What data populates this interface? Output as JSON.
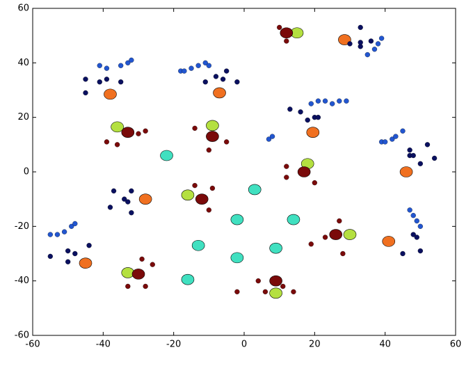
{
  "chart_data": {
    "type": "scatter",
    "xlim": [
      -60,
      60
    ],
    "ylim": [
      -60,
      60
    ],
    "xticks": [
      -60,
      -40,
      -20,
      0,
      20,
      40,
      60
    ],
    "yticks": [
      -60,
      -40,
      -20,
      0,
      20,
      40,
      60
    ],
    "grid": false,
    "series": [
      {
        "color": "#40e0c0",
        "marker": "large",
        "x": [
          -22,
          3,
          -2,
          14,
          -13,
          9,
          -2,
          -16
        ],
        "y": [
          6,
          -6.5,
          -17.5,
          -17.5,
          -27,
          -28,
          -31.5,
          -39.5
        ]
      },
      {
        "color": "#b4e040",
        "marker": "large",
        "x": [
          15,
          -36,
          -9,
          18,
          -16,
          30,
          -33,
          9
        ],
        "y": [
          51,
          16.5,
          17,
          3,
          -8.5,
          -23,
          -37,
          -44.5
        ]
      },
      {
        "color": "#f07020",
        "marker": "large",
        "x": [
          28.5,
          -38,
          -7,
          19.5,
          46,
          -28,
          41,
          -45
        ],
        "y": [
          48.5,
          28.5,
          29,
          14.5,
          0,
          -10,
          -25.5,
          -33.5
        ]
      },
      {
        "color": "#7a0a0a",
        "marker": "large",
        "x": [
          12,
          -33,
          -9,
          17,
          -12,
          -30,
          26,
          9
        ],
        "y": [
          51,
          14.5,
          13,
          0,
          -10,
          -37.5,
          -23,
          -40
        ]
      },
      {
        "color": "#7a0a0a",
        "marker": "small",
        "x": [
          10,
          12,
          -30,
          -28,
          -39,
          -36,
          -14,
          -10,
          -5,
          12,
          12,
          20,
          -14,
          -10,
          -9,
          -29,
          -33,
          -28,
          -26,
          -2,
          4,
          6,
          11,
          14,
          19,
          27,
          23,
          28
        ],
        "y": [
          53,
          48,
          14,
          15,
          11,
          10,
          16,
          8,
          11,
          2,
          -2,
          -4,
          -5,
          -14,
          -6,
          -32,
          -42,
          -42,
          -34,
          -44,
          -40,
          -44,
          -42,
          -44,
          -26.5,
          -18,
          -24,
          -30
        ]
      },
      {
        "color": "#0a1060",
        "marker": "small",
        "x": [
          33,
          30,
          33,
          36,
          33,
          -45,
          -41,
          -39,
          -45,
          -35,
          -11,
          -8,
          -6,
          -2,
          -5,
          13,
          16,
          20,
          21,
          18,
          47,
          47,
          48,
          50,
          52,
          54,
          -37,
          -38,
          -32,
          -33,
          -32,
          -34,
          -48,
          -50,
          -50,
          -44,
          -55,
          45,
          48,
          49,
          50
        ],
        "y": [
          53,
          47,
          46,
          48,
          47.5,
          34,
          33,
          34,
          29,
          33,
          33,
          35,
          34,
          33,
          37,
          23,
          22,
          20,
          20,
          19,
          8,
          6,
          6,
          3,
          10,
          5,
          -7,
          -13,
          -7,
          -11,
          -15,
          -10,
          -30,
          -29,
          -33,
          -27,
          -31,
          -30,
          -23,
          -24,
          -29
        ]
      },
      {
        "color": "#2256d0",
        "marker": "small",
        "x": [
          -41,
          -39,
          -35,
          -33,
          -32,
          -18,
          -17,
          -15,
          -13,
          -11,
          -10,
          19,
          21,
          23,
          25,
          27,
          29,
          7,
          8,
          39,
          40,
          42,
          43,
          45,
          -55,
          -53,
          -51,
          -49,
          -48,
          47,
          48,
          49,
          50,
          35,
          37,
          38,
          39
        ],
        "y": [
          39,
          38,
          39,
          40,
          41,
          37,
          37,
          38,
          39,
          40,
          39,
          25,
          26,
          26,
          25,
          26,
          26,
          12,
          13,
          11,
          11,
          12,
          13,
          15,
          -23,
          -23,
          -22,
          -20,
          -19,
          -14,
          -16,
          -18,
          -20,
          43,
          45,
          47,
          49
        ]
      }
    ]
  }
}
